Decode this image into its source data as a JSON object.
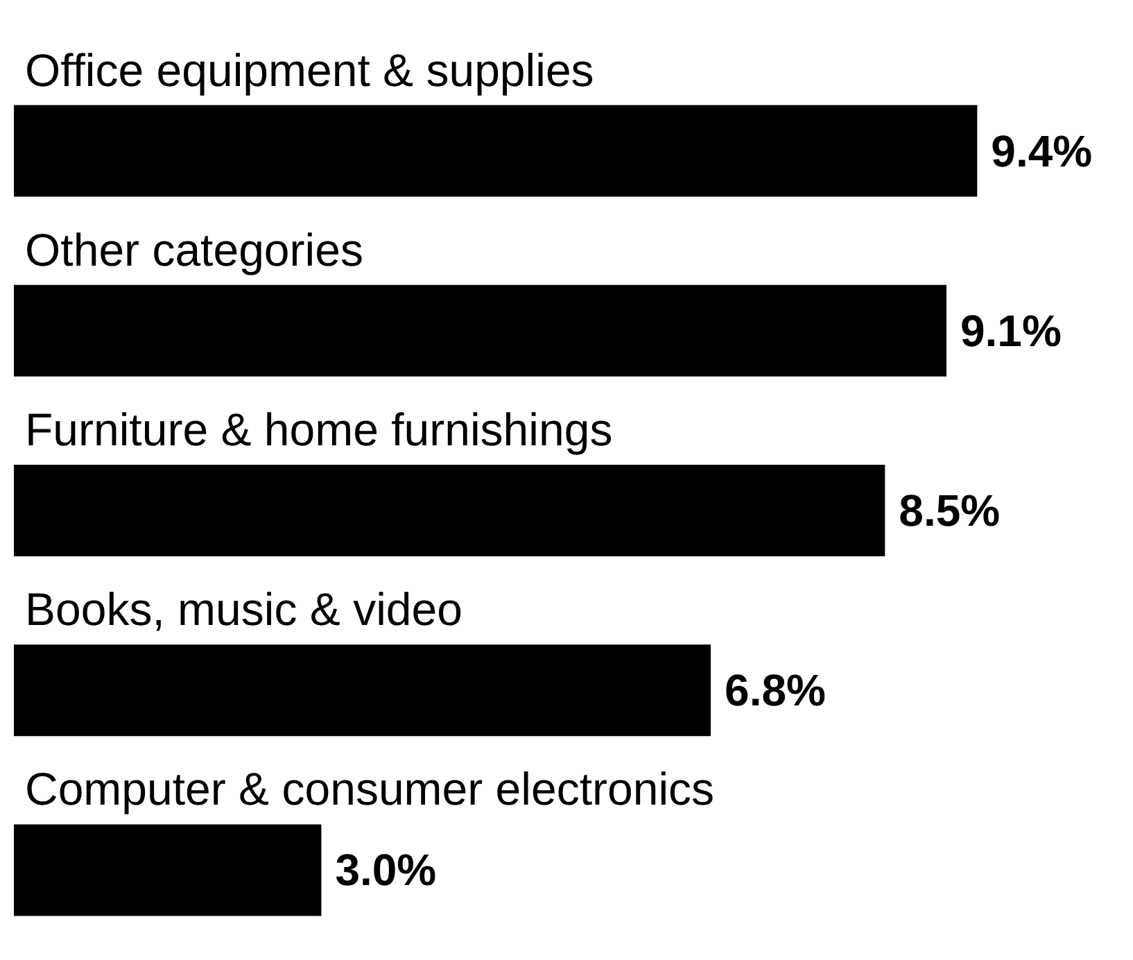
{
  "chart_data": {
    "type": "bar",
    "orientation": "horizontal",
    "categories": [
      "Office equipment & supplies",
      "Other categories",
      "Furniture & home furnishings",
      "Books, music & video",
      "Computer & consumer electronics"
    ],
    "values": [
      9.4,
      9.1,
      8.5,
      6.8,
      3.0
    ],
    "value_labels": [
      "9.4%",
      "9.1%",
      "8.5%",
      "6.8%",
      "3.0%"
    ],
    "color": "#000000"
  }
}
